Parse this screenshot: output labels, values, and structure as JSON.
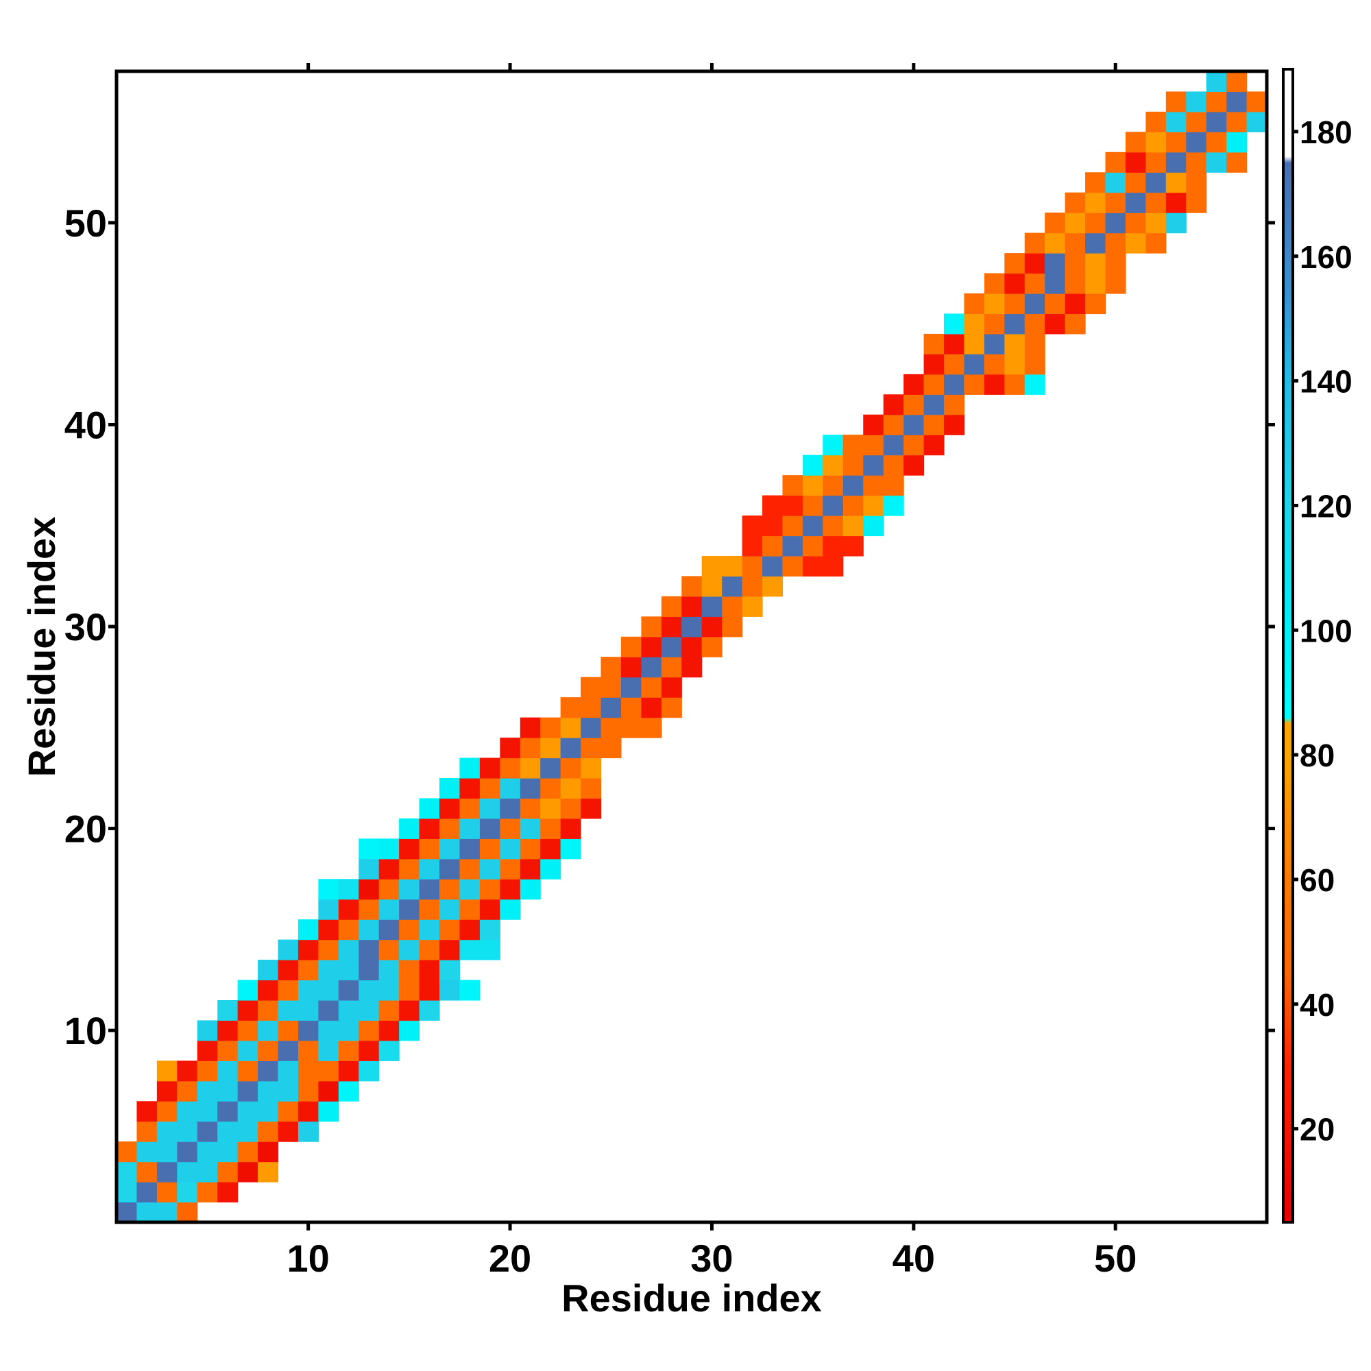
{
  "chart_data": {
    "type": "heatmap",
    "title": "",
    "xlabel": "Residue index",
    "ylabel": "Residue index",
    "xlim": [
      0.5,
      57.5
    ],
    "ylim": [
      0.5,
      57.5
    ],
    "x_ticks": [
      10,
      20,
      30,
      40,
      50
    ],
    "y_ticks": [
      10,
      20,
      30,
      40,
      50
    ],
    "colorbar": {
      "range": [
        5,
        190
      ],
      "ticks": [
        20,
        40,
        60,
        80,
        100,
        120,
        140,
        160,
        180
      ],
      "stops": [
        {
          "value": 5,
          "color": "#e60000"
        },
        {
          "value": 30,
          "color": "#ff2200"
        },
        {
          "value": 45,
          "color": "#ff6600"
        },
        {
          "value": 60,
          "color": "#ff7a00"
        },
        {
          "value": 80,
          "color": "#ffa500"
        },
        {
          "value": 85,
          "color": "#ffa500"
        },
        {
          "value": 86,
          "color": "#00ffff"
        },
        {
          "value": 100,
          "color": "#00f0f8"
        },
        {
          "value": 120,
          "color": "#1ed5ea"
        },
        {
          "value": 140,
          "color": "#22bde6"
        },
        {
          "value": 155,
          "color": "#3a8fd0"
        },
        {
          "value": 175,
          "color": "#4a6fb0"
        },
        {
          "value": 176,
          "color": "#ffffff"
        },
        {
          "value": 190,
          "color": "#ffffff"
        }
      ]
    },
    "rows": [
      {
        "y": 1,
        "x0": 1,
        "values": [
          175,
          125,
          125,
          45
        ]
      },
      {
        "y": 2,
        "x0": 1,
        "values": [
          120,
          175,
          50,
          120,
          50,
          20
        ]
      },
      {
        "y": 3,
        "x0": 1,
        "values": [
          120,
          50,
          175,
          125,
          125,
          50,
          15,
          75
        ]
      },
      {
        "y": 4,
        "x0": 1,
        "values": [
          50,
          125,
          125,
          175,
          125,
          125,
          50,
          15
        ]
      },
      {
        "y": 5,
        "x0": 2,
        "values": [
          50,
          125,
          125,
          175,
          125,
          125,
          50,
          20,
          125
        ]
      },
      {
        "y": 6,
        "x0": 2,
        "values": [
          20,
          50,
          125,
          125,
          175,
          125,
          125,
          50,
          20,
          100
        ]
      },
      {
        "y": 7,
        "x0": 3,
        "values": [
          20,
          50,
          125,
          125,
          175,
          125,
          125,
          50,
          15,
          95
        ]
      },
      {
        "y": 8,
        "x0": 3,
        "values": [
          75,
          20,
          50,
          125,
          50,
          175,
          125,
          50,
          50,
          20,
          115
        ]
      },
      {
        "y": 9,
        "x0": 5,
        "values": [
          20,
          50,
          125,
          50,
          175,
          50,
          125,
          50,
          20,
          115
        ]
      },
      {
        "y": 10,
        "x0": 5,
        "values": [
          125,
          20,
          50,
          125,
          50,
          175,
          125,
          125,
          50,
          20,
          100
        ]
      },
      {
        "y": 11,
        "x0": 6,
        "values": [
          120,
          20,
          50,
          125,
          125,
          175,
          125,
          125,
          50,
          20,
          120
        ]
      },
      {
        "y": 12,
        "x0": 7,
        "values": [
          95,
          20,
          50,
          125,
          125,
          175,
          125,
          125,
          50,
          20,
          125,
          95
        ]
      },
      {
        "y": 13,
        "x0": 8,
        "values": [
          125,
          20,
          50,
          125,
          125,
          175,
          125,
          50,
          20,
          120
        ]
      },
      {
        "y": 14,
        "x0": 9,
        "values": [
          125,
          20,
          50,
          125,
          175,
          50,
          125,
          50,
          20,
          110,
          110
        ]
      },
      {
        "y": 15,
        "x0": 10,
        "values": [
          100,
          20,
          50,
          125,
          175,
          50,
          125,
          50,
          20,
          120
        ]
      },
      {
        "y": 16,
        "x0": 11,
        "values": [
          125,
          20,
          50,
          125,
          175,
          50,
          125,
          50,
          20,
          100
        ]
      },
      {
        "y": 17,
        "x0": 11,
        "values": [
          95,
          110,
          15,
          50,
          125,
          175,
          50,
          125,
          50,
          20,
          100
        ]
      },
      {
        "y": 18,
        "x0": 13,
        "values": [
          125,
          20,
          50,
          125,
          175,
          50,
          125,
          50,
          20,
          100
        ]
      },
      {
        "y": 19,
        "x0": 13,
        "values": [
          95,
          100,
          20,
          50,
          125,
          175,
          50,
          125,
          50,
          20,
          95
        ]
      },
      {
        "y": 20,
        "x0": 15,
        "values": [
          100,
          20,
          50,
          125,
          175,
          50,
          125,
          50,
          20
        ]
      },
      {
        "y": 21,
        "x0": 16,
        "values": [
          100,
          20,
          50,
          125,
          175,
          50,
          75,
          50,
          20
        ]
      },
      {
        "y": 22,
        "x0": 17,
        "values": [
          100,
          20,
          50,
          125,
          175,
          50,
          75,
          50
        ]
      },
      {
        "y": 23,
        "x0": 18,
        "values": [
          100,
          20,
          50,
          75,
          175,
          50,
          75
        ]
      },
      {
        "y": 24,
        "x0": 20,
        "values": [
          20,
          50,
          75,
          175,
          50,
          50
        ]
      },
      {
        "y": 25,
        "x0": 21,
        "values": [
          20,
          50,
          75,
          175,
          50,
          50,
          50
        ]
      },
      {
        "y": 26,
        "x0": 23,
        "values": [
          50,
          50,
          175,
          50,
          20,
          50
        ]
      },
      {
        "y": 27,
        "x0": 24,
        "values": [
          50,
          50,
          175,
          50,
          20
        ]
      },
      {
        "y": 28,
        "x0": 25,
        "values": [
          50,
          20,
          175,
          50,
          20
        ]
      },
      {
        "y": 29,
        "x0": 26,
        "values": [
          50,
          20,
          175,
          20,
          50
        ]
      },
      {
        "y": 30,
        "x0": 27,
        "values": [
          50,
          20,
          175,
          20,
          50
        ]
      },
      {
        "y": 31,
        "x0": 28,
        "values": [
          50,
          20,
          175,
          50,
          75
        ]
      },
      {
        "y": 32,
        "x0": 29,
        "values": [
          50,
          75,
          175,
          50,
          75
        ]
      },
      {
        "y": 33,
        "x0": 30,
        "values": [
          75,
          75,
          50,
          175,
          50,
          30,
          30
        ]
      },
      {
        "y": 34,
        "x0": 32,
        "values": [
          30,
          50,
          175,
          50,
          30,
          30
        ]
      },
      {
        "y": 35,
        "x0": 32,
        "values": [
          30,
          30,
          50,
          175,
          50,
          75,
          100
        ]
      },
      {
        "y": 36,
        "x0": 33,
        "values": [
          30,
          30,
          50,
          175,
          50,
          75,
          95
        ]
      },
      {
        "y": 37,
        "x0": 34,
        "values": [
          50,
          75,
          50,
          175,
          50,
          50
        ]
      },
      {
        "y": 38,
        "x0": 35,
        "values": [
          95,
          75,
          50,
          175,
          50,
          20
        ]
      },
      {
        "y": 39,
        "x0": 36,
        "values": [
          95,
          50,
          50,
          175,
          50,
          20
        ]
      },
      {
        "y": 40,
        "x0": 38,
        "values": [
          20,
          50,
          175,
          50,
          20
        ]
      },
      {
        "y": 41,
        "x0": 39,
        "values": [
          20,
          50,
          175,
          50
        ]
      },
      {
        "y": 42,
        "x0": 40,
        "values": [
          20,
          50,
          175,
          50,
          20,
          50,
          95
        ]
      },
      {
        "y": 43,
        "x0": 41,
        "values": [
          20,
          50,
          175,
          50,
          75,
          50
        ]
      },
      {
        "y": 44,
        "x0": 41,
        "values": [
          50,
          20,
          75,
          175,
          75,
          50
        ]
      },
      {
        "y": 45,
        "x0": 42,
        "values": [
          95,
          75,
          50,
          175,
          50,
          20,
          50
        ]
      },
      {
        "y": 46,
        "x0": 43,
        "values": [
          50,
          75,
          50,
          175,
          50,
          20,
          50
        ]
      },
      {
        "y": 47,
        "x0": 44,
        "values": [
          50,
          20,
          50,
          175,
          50,
          75,
          50
        ]
      },
      {
        "y": 48,
        "x0": 45,
        "values": [
          50,
          20,
          175,
          50,
          75,
          50
        ]
      },
      {
        "y": 49,
        "x0": 46,
        "values": [
          50,
          75,
          50,
          175,
          50,
          75,
          50
        ]
      },
      {
        "y": 50,
        "x0": 47,
        "values": [
          50,
          75,
          50,
          175,
          50,
          75,
          125
        ]
      },
      {
        "y": 51,
        "x0": 48,
        "values": [
          50,
          75,
          50,
          175,
          50,
          20,
          50
        ]
      },
      {
        "y": 52,
        "x0": 49,
        "values": [
          50,
          125,
          50,
          175,
          75,
          50
        ]
      },
      {
        "y": 53,
        "x0": 50,
        "values": [
          50,
          20,
          50,
          175,
          50,
          125,
          50
        ]
      },
      {
        "y": 54,
        "x0": 51,
        "values": [
          50,
          75,
          50,
          175,
          50,
          100
        ]
      },
      {
        "y": 55,
        "x0": 52,
        "values": [
          50,
          125,
          50,
          175,
          50,
          125
        ]
      },
      {
        "y": 56,
        "x0": 53,
        "values": [
          50,
          125,
          50,
          175,
          50
        ]
      },
      {
        "y": 57,
        "x0": 55,
        "values": [
          125,
          50
        ]
      }
    ]
  }
}
